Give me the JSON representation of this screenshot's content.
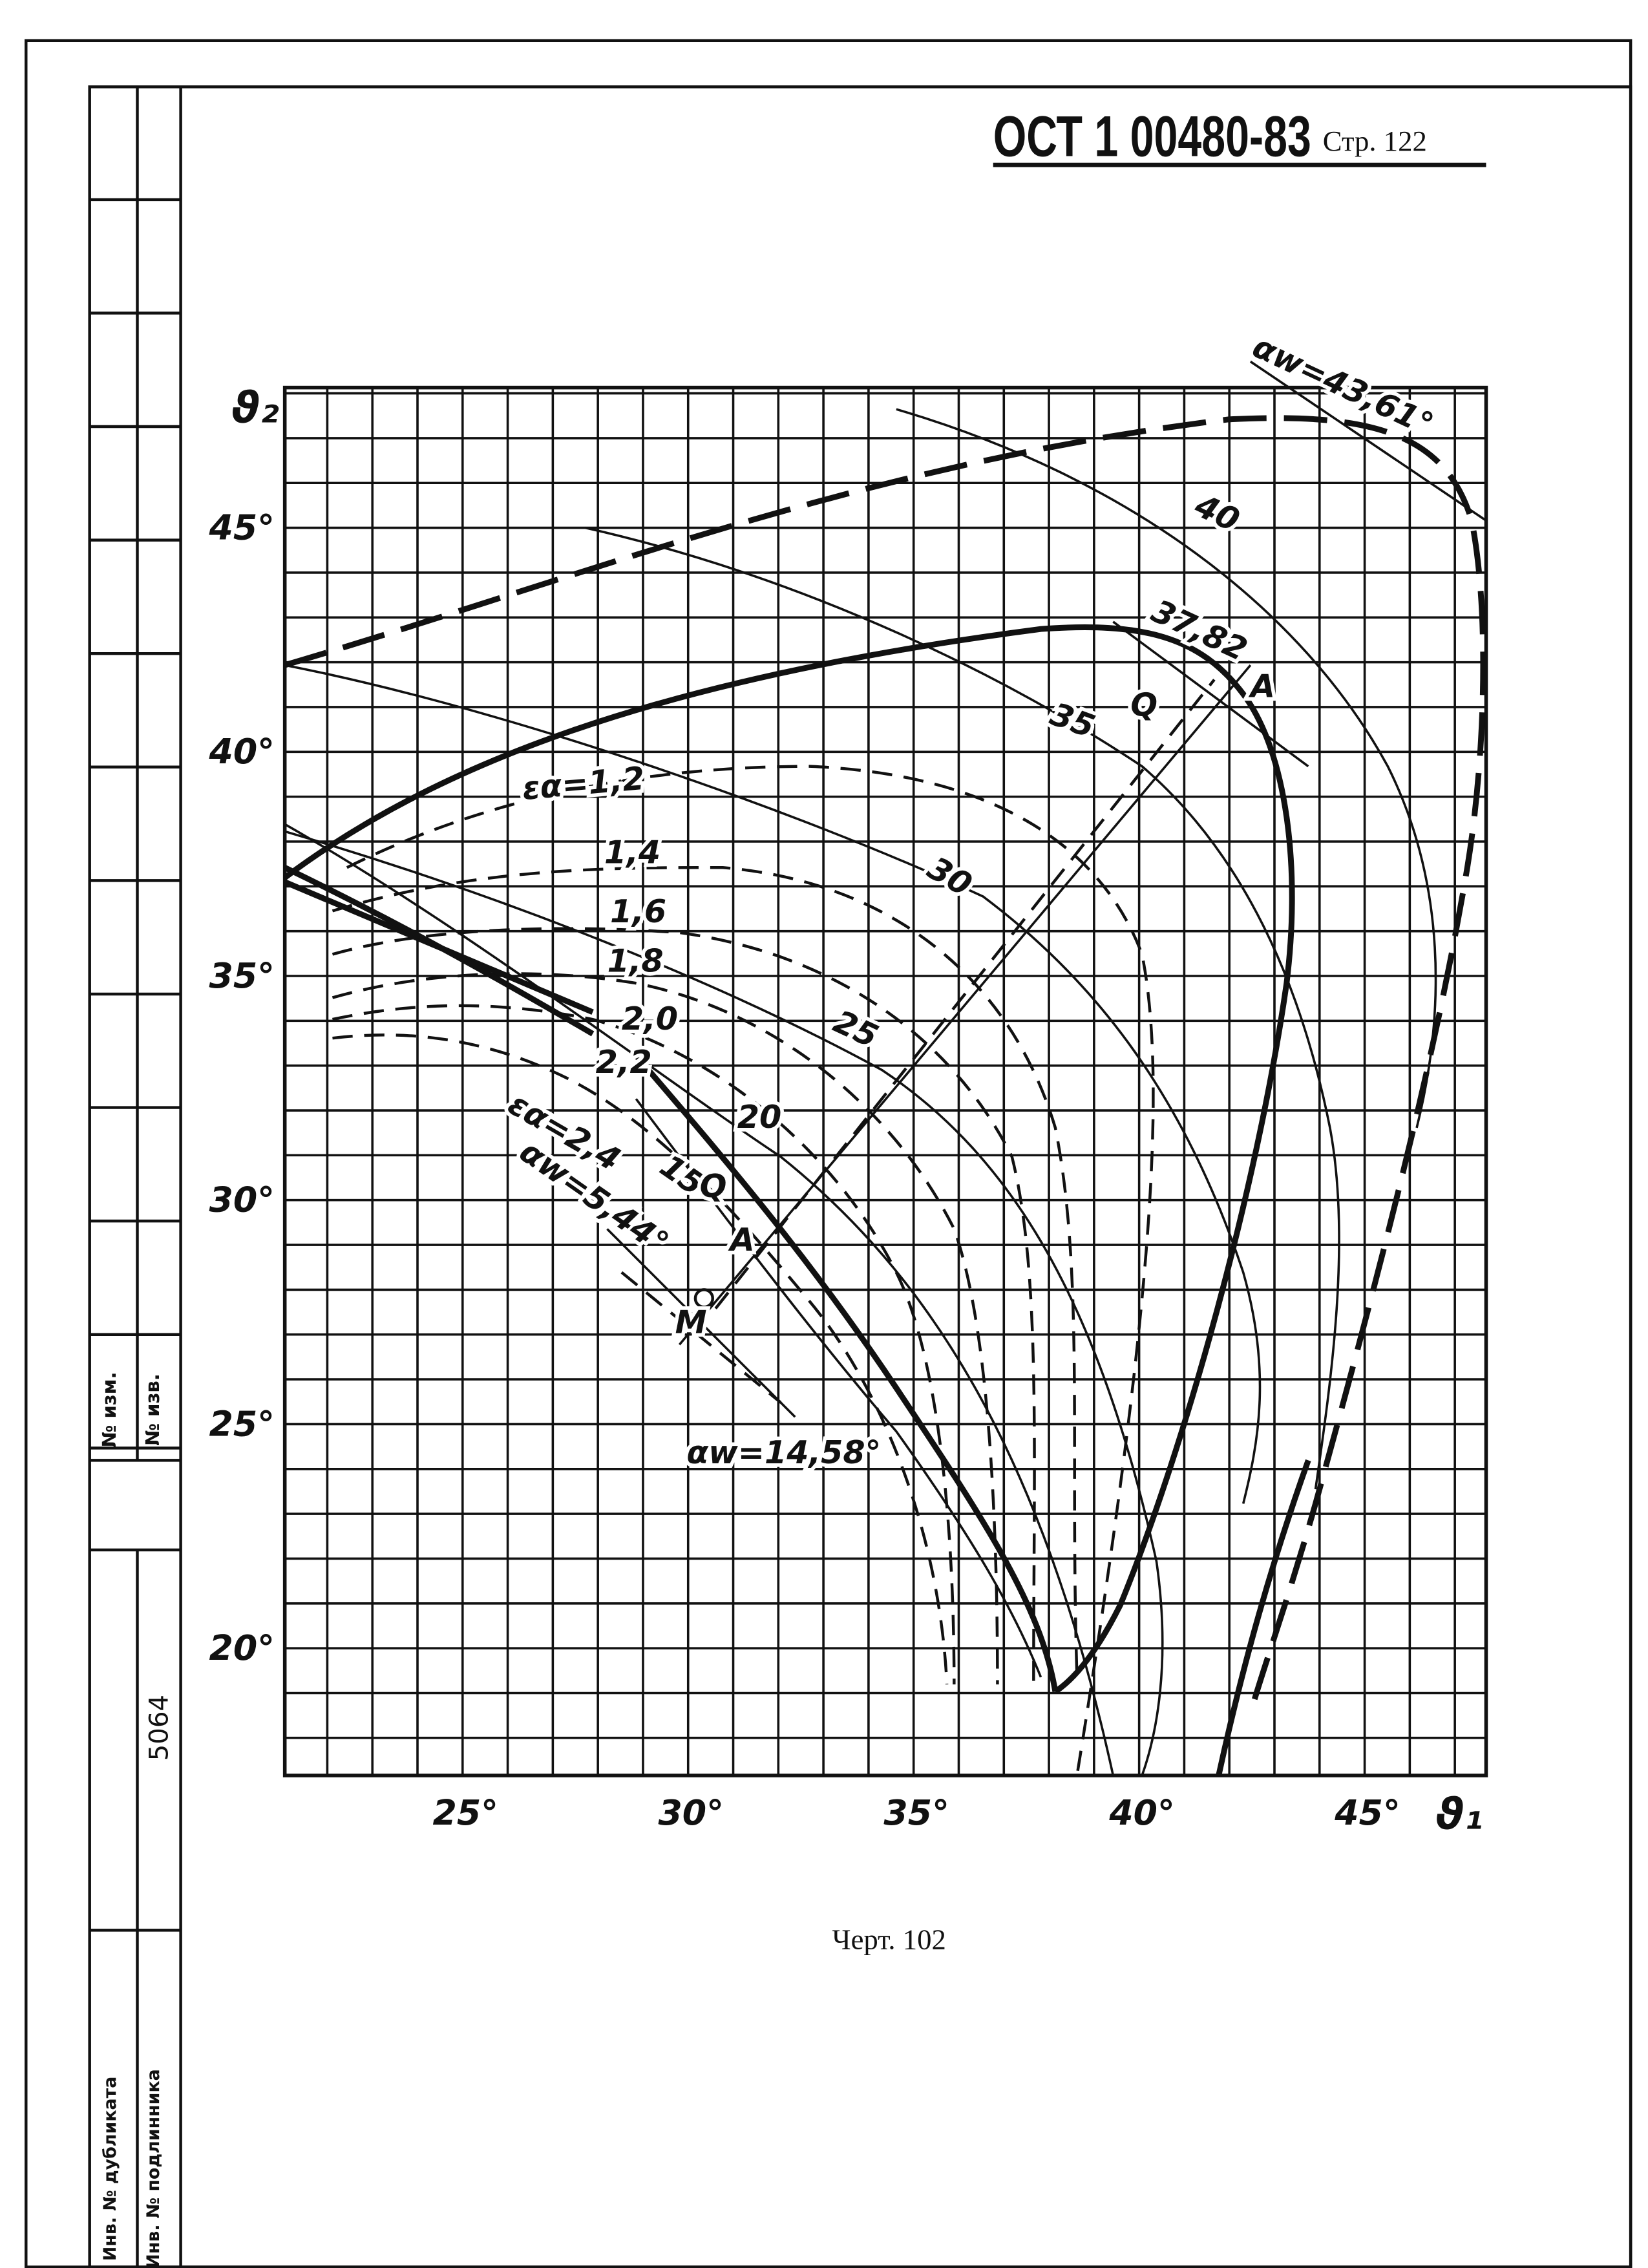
{
  "header": {
    "standard": "ОСТ 1 00480-83",
    "page": "Стр. 122"
  },
  "figure": {
    "y_axis_label": "ϑ₂",
    "x_axis_label": "ϑ₁",
    "y_tick_labels": [
      "45°",
      "40°",
      "35°",
      "30°",
      "25°",
      "20°"
    ],
    "x_tick_labels": [
      "25°",
      "30°",
      "35°",
      "40°",
      "45°"
    ],
    "curve_labels": [
      "αw=43,61°",
      "40",
      "37,82",
      "35",
      "Q",
      "A",
      "30",
      "εα=1,2",
      "1,4",
      "1,6",
      "1,8",
      "2,0",
      "2,2",
      "εα=2,4",
      "αw=5,44°",
      "15",
      "20",
      "25",
      "Q",
      "A",
      "M",
      "αw=14,58°"
    ]
  },
  "caption": "Черт. 102",
  "stamp": {
    "change_no": "№ изм.",
    "notice_no": "№ изв.",
    "number": "5064",
    "duplicate_inv": "Инв. № дубликата",
    "original_inv": "Инв. № подлинника"
  }
}
